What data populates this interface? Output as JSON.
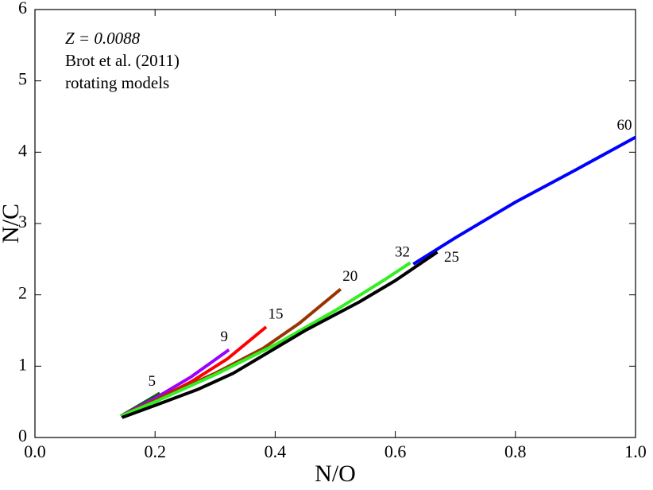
{
  "chart_data": {
    "type": "line",
    "annotations": [
      "Z = 0.0088",
      "Brot et al. (2011)",
      "rotating models"
    ],
    "xlabel": "N/O",
    "ylabel": "N/C",
    "xlim": [
      0,
      1
    ],
    "ylim": [
      0,
      6
    ],
    "xticks": [
      {
        "value": 0,
        "label": "0.0"
      },
      0.2,
      0.4,
      0.6,
      0.8,
      {
        "value": 1,
        "label": "1.0"
      }
    ],
    "yticks": [
      0,
      1,
      2,
      3,
      4,
      5,
      6
    ],
    "series": [
      {
        "name": "60",
        "color": "#0000ff",
        "x": [
          0.63,
          0.7,
          0.8,
          0.9,
          1.0
        ],
        "values": [
          2.43,
          2.8,
          3.3,
          3.75,
          4.21
        ]
      },
      {
        "name": "5",
        "color": "#006600",
        "x": [
          0.143,
          0.208
        ],
        "values": [
          0.3,
          0.62
        ]
      },
      {
        "name": "9",
        "color": "#9900ff",
        "x": [
          0.143,
          0.2,
          0.26,
          0.323
        ],
        "values": [
          0.3,
          0.55,
          0.85,
          1.23
        ]
      },
      {
        "name": "15",
        "color": "#ff0000",
        "x": [
          0.143,
          0.2,
          0.26,
          0.32,
          0.385
        ],
        "values": [
          0.3,
          0.52,
          0.78,
          1.1,
          1.55
        ]
      },
      {
        "name": "20",
        "color": "#993300",
        "x": [
          0.143,
          0.2,
          0.3,
          0.38,
          0.44,
          0.509
        ],
        "values": [
          0.3,
          0.52,
          0.9,
          1.25,
          1.6,
          2.08
        ]
      },
      {
        "name": "32",
        "color": "#33ee22",
        "x": [
          0.143,
          0.2,
          0.3,
          0.4,
          0.5,
          0.58,
          0.625
        ],
        "values": [
          0.3,
          0.5,
          0.88,
          1.3,
          1.78,
          2.2,
          2.45
        ]
      },
      {
        "name": "25",
        "color": "#000000",
        "x": [
          0.145,
          0.2,
          0.27,
          0.33,
          0.38,
          0.45,
          0.54,
          0.6,
          0.67
        ],
        "values": [
          0.28,
          0.45,
          0.67,
          0.9,
          1.15,
          1.5,
          1.9,
          2.2,
          2.6
        ]
      }
    ]
  }
}
